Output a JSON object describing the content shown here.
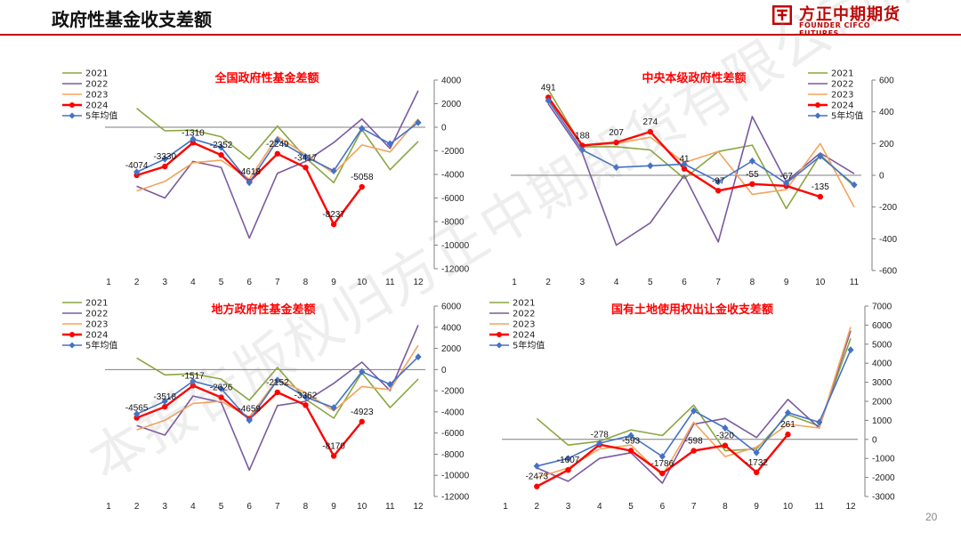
{
  "page": {
    "title": "政府性基金收支差额",
    "page_number": "20",
    "logo": {
      "cn": "方正中期期货",
      "en": "FOUNDER CIFCO FUTURES",
      "accent": "#c00000"
    },
    "watermark": "本报告版权归方正中期期货有限公司所有"
  },
  "legend_colors": {
    "2021": "#8aa640",
    "2022": "#7a5a9e",
    "2023": "#f5a35a",
    "2024": "#ff0000",
    "5年均值": "#4472c4"
  },
  "chart_data": [
    {
      "type": "line",
      "title": "全国政府性基金差额",
      "x": [
        1,
        2,
        3,
        4,
        5,
        6,
        7,
        8,
        9,
        10,
        11,
        12
      ],
      "ylim": [
        -12000,
        4000
      ],
      "yticks": [
        4000,
        2000,
        0,
        -2000,
        -4000,
        -6000,
        -8000,
        -10000,
        -12000
      ],
      "legend": "top-left",
      "series": [
        {
          "name": "2021",
          "color_key": "2021",
          "values": [
            null,
            1600,
            -300,
            -250,
            -800,
            -2700,
            100,
            -2600,
            -4700,
            -200,
            -3600,
            -1200
          ]
        },
        {
          "name": "2022",
          "color_key": "2022",
          "values": [
            null,
            -5000,
            -6000,
            -2900,
            -3400,
            -9400,
            -3900,
            -2900,
            -1300,
            700,
            -1800,
            3100
          ]
        },
        {
          "name": "2023",
          "color_key": "2023",
          "values": [
            null,
            -5400,
            -4600,
            -3000,
            -2800,
            -4400,
            -800,
            -2300,
            -3900,
            -1500,
            -2100,
            700
          ]
        },
        {
          "name": "2024",
          "color_key": "2024",
          "marker": "circle",
          "values": [
            null,
            -4074,
            -3330,
            -1310,
            -2352,
            -4618,
            -2249,
            -3417,
            -8237,
            -5058,
            null,
            null
          ]
        },
        {
          "name": "5年均值",
          "color_key": "5年均值",
          "marker": "diamond",
          "values": [
            null,
            -3800,
            -2700,
            -1000,
            -1700,
            -4700,
            -1100,
            -2500,
            -3700,
            -100,
            -1400,
            400
          ]
        }
      ],
      "labels": [
        {
          "text": "-4074",
          "x": 2,
          "y": -4074
        },
        {
          "text": "-3330",
          "x": 3,
          "y": -3330
        },
        {
          "text": "-1310",
          "x": 4,
          "y": -1310
        },
        {
          "text": "-2352",
          "x": 5,
          "y": -2352
        },
        {
          "text": "-4618",
          "x": 6,
          "y": -4618
        },
        {
          "text": "-2249",
          "x": 7,
          "y": -2249
        },
        {
          "text": "-3417",
          "x": 8,
          "y": -3417
        },
        {
          "text": "-8237",
          "x": 9,
          "y": -8237
        },
        {
          "text": "-5058",
          "x": 10,
          "y": -5058
        }
      ]
    },
    {
      "type": "line",
      "title": "中央本级政府性差额",
      "x": [
        1,
        2,
        3,
        4,
        5,
        6,
        7,
        8,
        9,
        10,
        11
      ],
      "ylim": [
        -600,
        600
      ],
      "yticks": [
        600,
        400,
        200,
        0,
        -200,
        -400,
        -600
      ],
      "legend": "top-right",
      "series": [
        {
          "name": "2021",
          "color_key": "2021",
          "values": [
            null,
            540,
            180,
            180,
            160,
            -20,
            150,
            190,
            -210,
            130,
            -70
          ]
        },
        {
          "name": "2022",
          "color_key": "2022",
          "values": [
            null,
            450,
            140,
            -440,
            -300,
            0,
            -420,
            370,
            -40,
            140,
            10
          ]
        },
        {
          "name": "2023",
          "color_key": "2023",
          "values": [
            null,
            480,
            190,
            200,
            240,
            80,
            150,
            -120,
            -90,
            200,
            -200
          ]
        },
        {
          "name": "2024",
          "color_key": "2024",
          "marker": "circle",
          "values": [
            null,
            491,
            188,
            207,
            274,
            41,
            -97,
            -55,
            -67,
            -135,
            null
          ]
        },
        {
          "name": "5年均值",
          "color_key": "5年均值",
          "marker": "diamond",
          "values": [
            null,
            470,
            160,
            50,
            60,
            70,
            -40,
            90,
            -50,
            120,
            -60
          ]
        }
      ],
      "labels": [
        {
          "text": "491",
          "x": 2,
          "y": 491
        },
        {
          "text": "188",
          "x": 3,
          "y": 188
        },
        {
          "text": "207",
          "x": 4,
          "y": 207
        },
        {
          "text": "274",
          "x": 5,
          "y": 274
        },
        {
          "text": "41",
          "x": 6,
          "y": 41
        },
        {
          "text": "-97",
          "x": 7,
          "y": -97
        },
        {
          "text": "-55",
          "x": 8,
          "y": -55
        },
        {
          "text": "-67",
          "x": 9,
          "y": -67
        },
        {
          "text": "-135",
          "x": 10,
          "y": -135
        }
      ]
    },
    {
      "type": "line",
      "title": "地方政府性基金差额",
      "x": [
        1,
        2,
        3,
        4,
        5,
        6,
        7,
        8,
        9,
        10,
        11,
        12
      ],
      "ylim": [
        -12000,
        6000
      ],
      "yticks": [
        6000,
        4000,
        2000,
        0,
        -2000,
        -4000,
        -6000,
        -8000,
        -10000,
        -12000
      ],
      "legend": "top-left",
      "series": [
        {
          "name": "2021",
          "color_key": "2021",
          "values": [
            null,
            1100,
            -500,
            -400,
            -900,
            -2900,
            200,
            -2800,
            -4600,
            -300,
            -3600,
            -900
          ]
        },
        {
          "name": "2022",
          "color_key": "2022",
          "values": [
            null,
            -5300,
            -6200,
            -2500,
            -3100,
            -9500,
            -3400,
            -3000,
            -1300,
            700,
            -2000,
            4200
          ]
        },
        {
          "name": "2023",
          "color_key": "2023",
          "values": [
            null,
            -5700,
            -4800,
            -3200,
            -3000,
            -4500,
            -900,
            -2200,
            -3900,
            -1600,
            -1900,
            2300
          ]
        },
        {
          "name": "2024",
          "color_key": "2024",
          "marker": "circle",
          "values": [
            null,
            -4565,
            -3518,
            -1517,
            -2626,
            -4659,
            -2152,
            -3362,
            -8170,
            -4923,
            null,
            null
          ]
        },
        {
          "name": "5年均值",
          "color_key": "5年均值",
          "marker": "diamond",
          "values": [
            null,
            -4200,
            -3000,
            -1100,
            -1800,
            -4800,
            -1000,
            -2600,
            -3600,
            -200,
            -1400,
            1200
          ]
        }
      ],
      "labels": [
        {
          "text": "-4565",
          "x": 2,
          "y": -4565
        },
        {
          "text": "-3518",
          "x": 3,
          "y": -3518
        },
        {
          "text": "-1517",
          "x": 4,
          "y": -1517
        },
        {
          "text": "-2626",
          "x": 5,
          "y": -2626
        },
        {
          "text": "-4659",
          "x": 6,
          "y": -4659
        },
        {
          "text": "-2152",
          "x": 7,
          "y": -2152
        },
        {
          "text": "-3362",
          "x": 8,
          "y": -3362
        },
        {
          "text": "-8170",
          "x": 9,
          "y": -8170
        },
        {
          "text": "-4923",
          "x": 10,
          "y": -4923
        }
      ]
    },
    {
      "type": "line",
      "title": "国有土地使用权出让金收支差额",
      "x": [
        1,
        2,
        3,
        4,
        5,
        6,
        7,
        8,
        9,
        10,
        11,
        12
      ],
      "ylim": [
        -3000,
        7000
      ],
      "yticks": [
        7000,
        6000,
        5000,
        4000,
        3000,
        2000,
        1000,
        0,
        -1000,
        -2000,
        -3000
      ],
      "legend": "top-left",
      "series": [
        {
          "name": "2021",
          "color_key": "2021",
          "values": [
            null,
            1100,
            -300,
            -100,
            500,
            200,
            1800,
            -600,
            -500,
            1300,
            700,
            5300
          ]
        },
        {
          "name": "2022",
          "color_key": "2022",
          "values": [
            null,
            -1500,
            -2200,
            -1000,
            -700,
            -2300,
            800,
            1100,
            100,
            2100,
            600,
            5700
          ]
        },
        {
          "name": "2023",
          "color_key": "2023",
          "values": [
            null,
            -2000,
            -1500,
            -500,
            -300,
            -1900,
            900,
            -900,
            -400,
            800,
            600,
            5900
          ]
        },
        {
          "name": "2024",
          "color_key": "2024",
          "marker": "circle",
          "values": [
            null,
            -2473,
            -1607,
            -278,
            -593,
            -1786,
            -598,
            -320,
            -1732,
            261,
            null,
            null
          ]
        },
        {
          "name": "5年均值",
          "color_key": "5年均值",
          "marker": "diamond",
          "values": [
            null,
            -1400,
            -1000,
            -200,
            200,
            -900,
            1500,
            600,
            -700,
            1400,
            900,
            4700
          ]
        }
      ],
      "labels": [
        {
          "text": "-2473",
          "x": 2,
          "y": -2473
        },
        {
          "text": "-1607",
          "x": 3,
          "y": -1607
        },
        {
          "text": "-278",
          "x": 4,
          "y": -278
        },
        {
          "text": "-593",
          "x": 5,
          "y": -593
        },
        {
          "text": "-1786",
          "x": 6,
          "y": -1786
        },
        {
          "text": "-598",
          "x": 7,
          "y": -598
        },
        {
          "text": "-320",
          "x": 8,
          "y": -320
        },
        {
          "text": "-1732",
          "x": 9,
          "y": -1732
        },
        {
          "text": "261",
          "x": 10,
          "y": 261
        }
      ]
    }
  ]
}
